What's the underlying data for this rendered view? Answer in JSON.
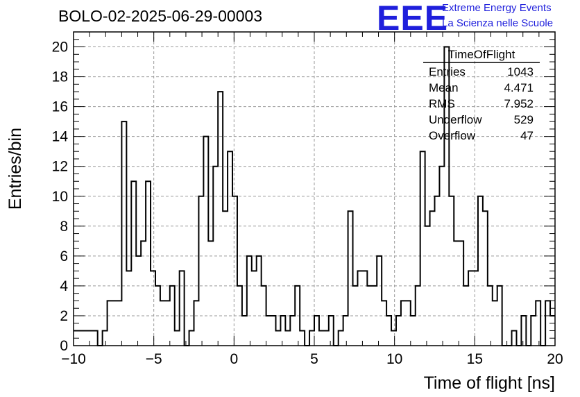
{
  "header": {
    "run_title": "BOLO-02-2025-06-29-00003",
    "logo_text": "EEE",
    "logo_line1": "Extreme Energy Events",
    "logo_line2": "La Scienza nelle Scuole",
    "logo_color": "#1f1fdc"
  },
  "stats": {
    "name": "TimeOfFlight",
    "rows": [
      {
        "label": "Entries",
        "value": "1043"
      },
      {
        "label": "Mean",
        "value": "4.471"
      },
      {
        "label": "RMS",
        "value": "7.952"
      },
      {
        "label": "Underflow",
        "value": "529"
      },
      {
        "label": "Overflow",
        "value": "47"
      }
    ]
  },
  "chart_data": {
    "type": "bar",
    "style": "step-histogram",
    "xlabel": "Time of flight [ns]",
    "ylabel": "Entries/bin",
    "xlim": [
      -10,
      20
    ],
    "ylim": [
      0,
      21
    ],
    "grid": true,
    "bin_width": 0.3,
    "x_start": -10,
    "xticks": [
      -10,
      -5,
      0,
      5,
      10,
      15,
      20
    ],
    "yticks": [
      0,
      2,
      4,
      6,
      8,
      10,
      12,
      14,
      16,
      18,
      20
    ],
    "values": [
      1,
      1,
      1,
      1,
      1,
      0,
      1,
      3,
      3,
      3,
      15,
      5,
      11,
      6,
      7,
      11,
      5,
      4,
      3,
      3,
      4,
      1,
      5,
      0,
      1,
      3,
      10,
      14,
      7,
      12,
      17,
      9,
      13,
      10,
      4,
      2,
      6,
      5,
      6,
      4,
      2,
      2,
      1,
      2,
      1,
      2,
      4,
      1,
      0,
      1,
      2,
      1,
      1,
      2,
      0,
      1,
      2,
      9,
      4,
      5,
      5,
      4,
      4,
      6,
      3,
      2,
      1,
      2,
      3,
      3,
      2,
      4,
      13,
      8,
      9,
      10,
      12,
      20,
      10,
      7,
      7,
      4,
      5,
      5,
      10,
      9,
      4,
      3,
      4,
      0,
      0,
      1,
      0,
      2,
      0,
      2,
      3,
      0,
      3,
      2
    ]
  }
}
